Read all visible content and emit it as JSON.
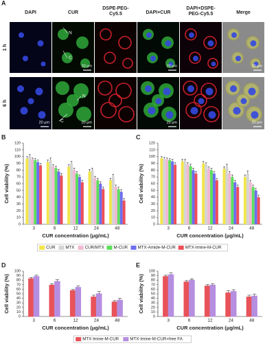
{
  "panel_a": {
    "label": "A",
    "columns": [
      [
        "DAPI"
      ],
      [
        "CUR"
      ],
      [
        "DSPE-PEG-",
        "Cy5.5"
      ],
      [
        "DAPI+CUR"
      ],
      [
        "DAPI+DSPE-",
        "PEG-Cy5.5"
      ],
      [
        "Merge"
      ]
    ],
    "rows": [
      "1 h",
      "6 h"
    ],
    "scale_bar": "20 μm",
    "labels": [
      "N",
      "C"
    ]
  },
  "chart_data": [
    {
      "type": "bar",
      "panel_label": "B",
      "xlabel": "CUR concentration (μg/mL)",
      "ylabel": "Cell viability (%)",
      "categories": [
        "3",
        "6",
        "12",
        "24",
        "48"
      ],
      "ylim": [
        0,
        120
      ],
      "yticks": [
        0,
        10,
        20,
        30,
        40,
        50,
        60,
        70,
        80,
        90,
        100,
        110,
        120
      ],
      "series": [
        {
          "name": "CUR",
          "color": "#f2e64a",
          "values": [
            97,
            92,
            85,
            78,
            65
          ],
          "errors": [
            3,
            3,
            3,
            3,
            3
          ]
        },
        {
          "name": "MTX",
          "color": "#d4d4d4",
          "values": [
            100,
            95,
            90,
            80,
            70
          ],
          "errors": [
            3,
            3,
            3,
            3,
            4
          ]
        },
        {
          "name": "CUR/MTX",
          "color": "#f3b8d3",
          "values": [
            96,
            85,
            80,
            68,
            55
          ],
          "errors": [
            2,
            3,
            3,
            3,
            3
          ]
        },
        {
          "name": "M-CUR",
          "color": "#5ddf5d",
          "values": [
            95,
            83,
            75,
            65,
            52
          ],
          "errors": [
            2,
            3,
            3,
            3,
            3
          ]
        },
        {
          "name": "MTX-Amide-M-CUR",
          "color": "#6d6df0",
          "values": [
            92,
            78,
            70,
            60,
            48
          ],
          "errors": [
            3,
            3,
            3,
            3,
            3
          ]
        },
        {
          "name": "MTX-Imine-M-CUR",
          "color": "#ee4f58",
          "values": [
            87,
            72,
            62,
            52,
            35
          ],
          "errors": [
            3,
            3,
            3,
            3,
            3
          ]
        }
      ]
    },
    {
      "type": "bar",
      "panel_label": "C",
      "xlabel": "CUR concentration (μg/mL)",
      "ylabel": "Cell viability (%)",
      "categories": [
        "3",
        "6",
        "12",
        "24",
        "48"
      ],
      "ylim": [
        0,
        120
      ],
      "yticks": [
        0,
        10,
        20,
        30,
        40,
        50,
        60,
        70,
        80,
        90,
        100,
        110,
        120
      ],
      "series": [
        {
          "name": "CUR",
          "color": "#f2e64a",
          "values": [
            98,
            93,
            90,
            82,
            70
          ],
          "errors": [
            2,
            3,
            3,
            3,
            3
          ]
        },
        {
          "name": "MTX",
          "color": "#d4d4d4",
          "values": [
            97,
            93,
            88,
            85,
            75
          ],
          "errors": [
            2,
            3,
            3,
            4,
            4
          ]
        },
        {
          "name": "CUR/MTX",
          "color": "#f3b8d3",
          "values": [
            96,
            88,
            82,
            75,
            62
          ],
          "errors": [
            2,
            3,
            3,
            3,
            3
          ]
        },
        {
          "name": "M-CUR",
          "color": "#5ddf5d",
          "values": [
            95,
            86,
            80,
            70,
            55
          ],
          "errors": [
            2,
            3,
            3,
            3,
            3
          ]
        },
        {
          "name": "MTX-Amide-M-CUR",
          "color": "#6d6df0",
          "values": [
            93,
            80,
            75,
            62,
            50
          ],
          "errors": [
            3,
            3,
            3,
            3,
            3
          ]
        },
        {
          "name": "MTX-Imine-M-CUR",
          "color": "#ee4f58",
          "values": [
            88,
            75,
            65,
            55,
            40
          ],
          "errors": [
            3,
            3,
            3,
            3,
            3
          ]
        }
      ]
    },
    {
      "type": "bar",
      "panel_label": "D",
      "xlabel": "CUR concentration (μg/mL)",
      "ylabel": "Cell viability (%)",
      "categories": [
        "3",
        "6",
        "12",
        "24",
        "48"
      ],
      "ylim": [
        0,
        100
      ],
      "yticks": [
        0,
        10,
        20,
        30,
        40,
        50,
        60,
        70,
        80,
        90,
        100
      ],
      "series": [
        {
          "name": "MTX-Imine-M-CUR",
          "color": "#e8535a",
          "values": [
            83,
            69,
            57,
            43,
            32
          ],
          "errors": [
            3,
            3,
            3,
            4,
            3
          ]
        },
        {
          "name": "MTX-Imine-M-CUR+free FA",
          "color": "#b68ee0",
          "values": [
            88,
            77,
            64,
            50,
            36
          ],
          "errors": [
            3,
            4,
            3,
            5,
            4
          ]
        }
      ]
    },
    {
      "type": "bar",
      "panel_label": "E",
      "xlabel": "CUR concentration (μg/mL)",
      "ylabel": "Cell viability (%)",
      "categories": [
        "3",
        "6",
        "12",
        "24",
        "48"
      ],
      "ylim": [
        0,
        100
      ],
      "yticks": [
        0,
        10,
        20,
        30,
        40,
        50,
        60,
        70,
        80,
        90,
        100
      ],
      "series": [
        {
          "name": "MTX-Imine-M-CUR",
          "color": "#e8535a",
          "values": [
            88,
            76,
            67,
            52,
            43
          ],
          "errors": [
            3,
            3,
            3,
            5,
            4
          ]
        },
        {
          "name": "MTX-Imine-M-CUR+free FA",
          "color": "#b68ee0",
          "values": [
            92,
            80,
            69,
            55,
            45
          ],
          "errors": [
            4,
            3,
            3,
            4,
            4
          ]
        }
      ]
    }
  ]
}
